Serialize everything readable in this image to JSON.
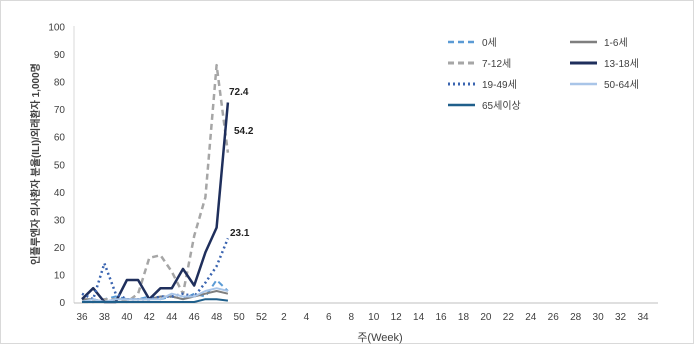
{
  "chart_data": {
    "type": "line",
    "xlabel": "주(Week)",
    "ylabel": "인플루엔자 의사환자 분율(ILI)/외래환자 1,000명",
    "ylim": [
      0,
      100
    ],
    "yticks": [
      0,
      10,
      20,
      30,
      40,
      50,
      60,
      70,
      80,
      90,
      100
    ],
    "x_categories": [
      "36",
      "37",
      "38",
      "39",
      "40",
      "41",
      "42",
      "43",
      "44",
      "45",
      "46",
      "47",
      "48",
      "49",
      "50",
      "51",
      "52",
      "1",
      "2",
      "3",
      "4",
      "5",
      "6",
      "7",
      "8",
      "9",
      "10",
      "11",
      "12",
      "13",
      "14",
      "15",
      "16",
      "17",
      "18",
      "19",
      "20",
      "21",
      "22",
      "23",
      "24",
      "25",
      "26",
      "27",
      "28",
      "29",
      "30",
      "31",
      "32",
      "33",
      "34",
      "35"
    ],
    "x_tick_labels": [
      "36",
      "38",
      "40",
      "42",
      "44",
      "46",
      "48",
      "50",
      "52",
      "2",
      "4",
      "6",
      "8",
      "10",
      "12",
      "14",
      "16",
      "18",
      "20",
      "22",
      "24",
      "26",
      "28",
      "30",
      "32",
      "34"
    ],
    "legend_position": "top-right",
    "series": [
      {
        "name": "0세",
        "color": "#5b9bd5",
        "dash": "dashed",
        "width": 2,
        "values": [
          1,
          0,
          1,
          2,
          1,
          1,
          2,
          1,
          2,
          1,
          3,
          2,
          8,
          4
        ]
      },
      {
        "name": "1-6세",
        "color": "#7f7f7f",
        "dash": "solid",
        "width": 2,
        "values": [
          1,
          1,
          0,
          1,
          1,
          1,
          1,
          2,
          2,
          1,
          2,
          3,
          4,
          3
        ]
      },
      {
        "name": "7-12세",
        "color": "#a6a6a6",
        "dash": "dashed",
        "width": 2.5,
        "values": [
          0,
          0,
          1,
          1,
          0,
          3,
          16,
          17,
          11,
          3,
          24,
          38,
          86,
          54.2
        ]
      },
      {
        "name": "13-18세",
        "color": "#1f2f5c",
        "dash": "solid",
        "width": 2.5,
        "values": [
          1,
          5,
          0,
          0,
          8,
          8,
          1,
          5,
          5,
          12,
          6,
          18,
          27,
          72.4
        ]
      },
      {
        "name": "19-49세",
        "color": "#3a64b0",
        "dash": "dotted",
        "width": 2.5,
        "values": [
          3,
          1,
          14,
          3,
          1,
          1,
          1,
          2,
          2,
          3,
          2,
          7,
          13,
          23.1
        ]
      },
      {
        "name": "50-64세",
        "color": "#a9c5e8",
        "dash": "solid",
        "width": 2,
        "values": [
          0,
          1,
          0,
          1,
          1,
          1,
          1,
          1,
          3,
          2,
          2,
          4,
          5,
          4
        ]
      },
      {
        "name": "65세이상",
        "color": "#1f5f8b",
        "dash": "solid",
        "width": 2,
        "values": [
          0,
          0,
          0,
          0,
          0,
          0,
          0,
          0,
          0,
          0,
          0,
          1,
          1,
          0.5
        ]
      }
    ],
    "data_labels": [
      {
        "series": "13-18세",
        "text": "72.4"
      },
      {
        "series": "7-12세",
        "text": "54.2"
      },
      {
        "series": "19-49세",
        "text": "23.1"
      }
    ]
  }
}
